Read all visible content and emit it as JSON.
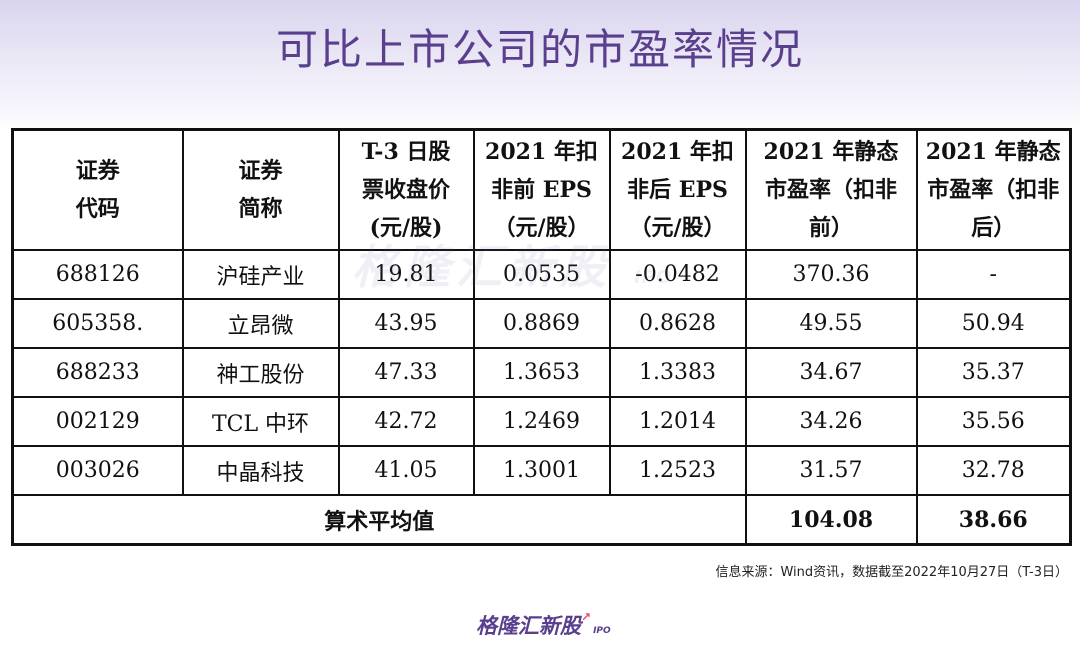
{
  "title": "可比上市公司的市盈率情况",
  "table": {
    "headers": [
      [
        "证券",
        "代码"
      ],
      [
        "证券",
        "简称"
      ],
      [
        "T-3 日股",
        "票收盘价",
        "(元/股)"
      ],
      [
        "2021 年扣",
        "非前 EPS",
        "（元/股）"
      ],
      [
        "2021 年扣",
        "非后 EPS",
        "（元/股）"
      ],
      [
        "2021 年静态",
        "市盈率（扣非",
        "前）"
      ],
      [
        "2021 年静态",
        "市盈率（扣非",
        "后）"
      ]
    ],
    "rows": [
      [
        "688126",
        "沪硅产业",
        "19.81",
        "0.0535",
        "-0.0482",
        "370.36",
        "-"
      ],
      [
        "605358.",
        "立昂微",
        "43.95",
        "0.8869",
        "0.8628",
        "49.55",
        "50.94"
      ],
      [
        "688233",
        "神工股份",
        "47.33",
        "1.3653",
        "1.3383",
        "34.67",
        "35.37"
      ],
      [
        "002129",
        "TCL 中环",
        "42.72",
        "1.2469",
        "1.2014",
        "34.26",
        "35.56"
      ],
      [
        "003026",
        "中晶科技",
        "41.05",
        "1.3001",
        "1.2523",
        "31.57",
        "32.78"
      ]
    ],
    "average": {
      "label": "算术平均值",
      "pe_before": "104.08",
      "pe_after": "38.66"
    }
  },
  "watermark": {
    "text": "格隆汇新股",
    "sub": "IPO"
  },
  "source": "信息来源：Wind资讯，数据截至2022年10月27日（T-3日）",
  "logo": {
    "text": "格隆汇新股",
    "sub": "IPO"
  }
}
